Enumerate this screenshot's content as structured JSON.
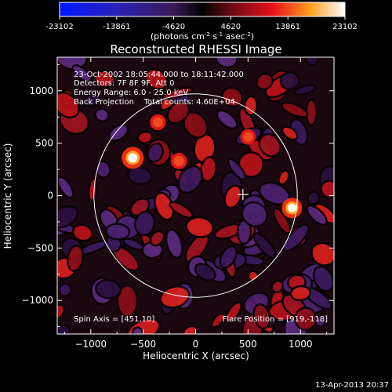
{
  "colorbar": {
    "tick_labels": [
      "-23102",
      "-13861",
      "-4620",
      "4620",
      "13861",
      "23102"
    ],
    "unit_label": "(photons cm",
    "unit_exp1": "-2",
    "unit_mid": " s",
    "unit_exp2": "-1",
    "unit_mid2": " asec",
    "unit_exp3": "-2",
    "unit_end": ")",
    "range": [
      -23102,
      23102
    ]
  },
  "annotations": {
    "line1": "23-Oct-2002 18:05:44.000 to 18:11:42.000",
    "line2": "Detectors: 7F 8F 9F, Att 0",
    "line3": "Energy Range: 6.0 - 25.0 keV",
    "line4": "Back Projection    Total counts: 4.60E+04",
    "spin_axis": "Spin Axis = [451,10]",
    "flare_position": "Flare Position = [919,-118]"
  },
  "footer": {
    "timestamp": "13-Apr-2013 20:37"
  },
  "chart_data": {
    "type": "heatmap",
    "title": "Reconstructed RHESSI Image",
    "xlabel": "Heliocentric X (arcsec)",
    "ylabel": "Heliocentric Y (arcsec)",
    "xlim": [
      -1320,
      1320
    ],
    "ylim": [
      -1320,
      1320
    ],
    "x_ticks": [
      -1000,
      -500,
      0,
      500,
      1000
    ],
    "y_ticks": [
      -1000,
      -500,
      0,
      500,
      1000
    ],
    "x_tick_labels": [
      "−1000",
      "−500",
      "0",
      "500",
      "1000"
    ],
    "y_tick_labels": [
      "−1000",
      "−500",
      "0",
      "500",
      "1000"
    ],
    "solar_limb": {
      "center": [
        0,
        0
      ],
      "radius": 970
    },
    "spin_axis": [
      451,
      10
    ],
    "flare_position": [
      919,
      -118
    ],
    "bright_sources": [
      {
        "x": -600,
        "y": 360,
        "value": 23102
      },
      {
        "x": 919,
        "y": -118,
        "value": 19000
      },
      {
        "x": -160,
        "y": 330,
        "value": 9000
      },
      {
        "x": -360,
        "y": 700,
        "value": 8000
      },
      {
        "x": 500,
        "y": 560,
        "value": 7000
      }
    ],
    "grid": false
  }
}
